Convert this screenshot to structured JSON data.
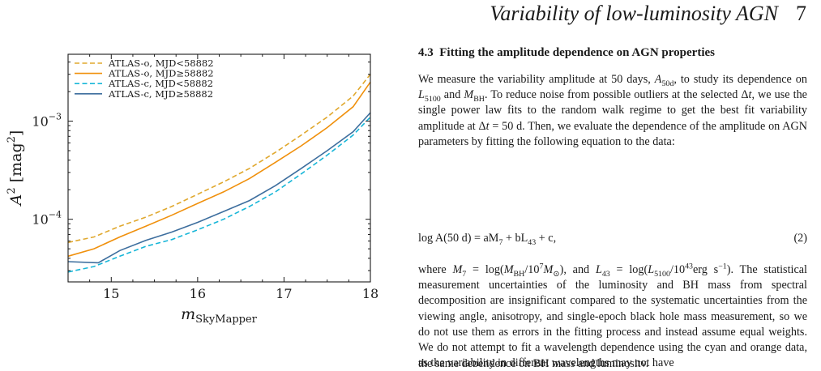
{
  "header": {
    "running_title": "Variability of low-luminosity AGN",
    "page_number": "7"
  },
  "section": {
    "number": "4.3",
    "title": "Fitting the amplitude dependence on AGN properties"
  },
  "paragraph1": {
    "s1": "We measure the variability amplitude at 50 days, ",
    "a50_sym": "A",
    "a50_sub": "50d",
    "s2": ", to study its dependence on ",
    "l_sym": "L",
    "l_sub": "5100",
    "s3": " and ",
    "m_sym": "M",
    "m_sub": "BH",
    "s4": ". To reduce noise from possible outliers at the selected Δ",
    "t_sym": "t",
    "s5": ", we use the single power law fits to the random walk regime to get the best fit variability amplitude at Δ",
    "s6": " = 50 d. Then, we evaluate the dependence of the amplitude on AGN parameters by fitting the following equation to the data:"
  },
  "equation": {
    "text_a": "log A(50 d) = aM",
    "sub_7": "7",
    "text_b": " + bL",
    "sub_43": "43",
    "text_c": " + c,",
    "number": "(2)"
  },
  "paragraph2": {
    "w1": "where ",
    "w2": "M",
    "w3": "7",
    "w4": " = log(",
    "w5": "M",
    "w6": "BH",
    "w7": "/10",
    "w8": "7",
    "w9": "M",
    "w10": "⊙",
    "w11": "), and ",
    "w12": "L",
    "w13": "43",
    "w14": " = log(",
    "w15": "L",
    "w16": "5100",
    "w17": "/10",
    "w18": "43",
    "w19": "erg s",
    "w20": "−1",
    "w21": "). The statistical measurement uncertainties of the luminosity and BH mass from spectral decomposition are insignificant compared to the systematic uncertainties from the viewing angle, anisotropy, and single-epoch black hole mass measurement, so we do not use them as errors in the fitting process and instead assume equal weights. We do not attempt to fit a wavelength dependence using the cyan and orange data, as the variability in different wavelengths may not have"
  },
  "tail_line": "the same dependence on BH mass and luminosity.",
  "chart_data": {
    "type": "line",
    "xlabel_base": "m",
    "xlabel_sub": "SkyMapper",
    "ylabel_base": "A",
    "ylabel_sup": "2",
    "ylabel_unit": " [mag",
    "ylabel_close": "]",
    "xlim": [
      14.5,
      18.0
    ],
    "ylim": [
      2.3e-05,
      0.0048
    ],
    "yscale": "log",
    "x_ticks": [
      15,
      16,
      17,
      18
    ],
    "x_tick_labels": [
      "15",
      "16",
      "17",
      "18"
    ],
    "y_ticks": [
      0.0001,
      0.001
    ],
    "y_tick_base": "10",
    "y_tick_exps": [
      "−4",
      "−3"
    ],
    "legend_position": "top-left",
    "series": [
      {
        "name": "ATLAS-o, MJD<58882",
        "color": "#e0a82e",
        "dash": "dashed",
        "x": [
          14.5,
          14.8,
          15.1,
          15.4,
          15.7,
          16.0,
          16.3,
          16.6,
          16.9,
          17.2,
          17.5,
          17.8,
          18.0
        ],
        "y": [
          5.8e-05,
          6.6e-05,
          8.5e-05,
          0.000105,
          0.000135,
          0.00018,
          0.00024,
          0.00033,
          0.00048,
          0.00072,
          0.0011,
          0.0018,
          0.003
        ]
      },
      {
        "name": "ATLAS-o, MJD≥58882",
        "color": "#f0900c",
        "dash": "solid",
        "x": [
          14.5,
          14.8,
          15.1,
          15.4,
          15.7,
          16.0,
          16.3,
          16.6,
          16.9,
          17.2,
          17.5,
          17.8,
          18.0
        ],
        "y": [
          4.2e-05,
          5e-05,
          6.6e-05,
          8.5e-05,
          0.00011,
          0.000145,
          0.00019,
          0.00026,
          0.00038,
          0.00056,
          0.00086,
          0.0014,
          0.0025
        ]
      },
      {
        "name": "ATLAS-c, MJD<58882",
        "color": "#17b6d8",
        "dash": "dashed",
        "x": [
          14.5,
          14.8,
          15.1,
          15.4,
          15.7,
          16.0,
          16.3,
          16.6,
          16.9,
          17.2,
          17.5,
          17.8,
          18.0
        ],
        "y": [
          2.9e-05,
          3.3e-05,
          4.2e-05,
          5.3e-05,
          6.2e-05,
          7.8e-05,
          0.0001,
          0.000135,
          0.00019,
          0.00029,
          0.00045,
          0.00072,
          0.0011
        ]
      },
      {
        "name": "ATLAS-c, MJD≥58882",
        "color": "#3d6e9e",
        "dash": "solid",
        "x": [
          14.5,
          14.85,
          15.1,
          15.4,
          15.7,
          16.0,
          16.3,
          16.6,
          16.9,
          17.2,
          17.5,
          17.8,
          18.0
        ],
        "y": [
          3.7e-05,
          3.6e-05,
          4.8e-05,
          6.1e-05,
          7.4e-05,
          9.3e-05,
          0.00012,
          0.000155,
          0.00022,
          0.00033,
          0.0005,
          0.00078,
          0.00122
        ]
      }
    ]
  }
}
